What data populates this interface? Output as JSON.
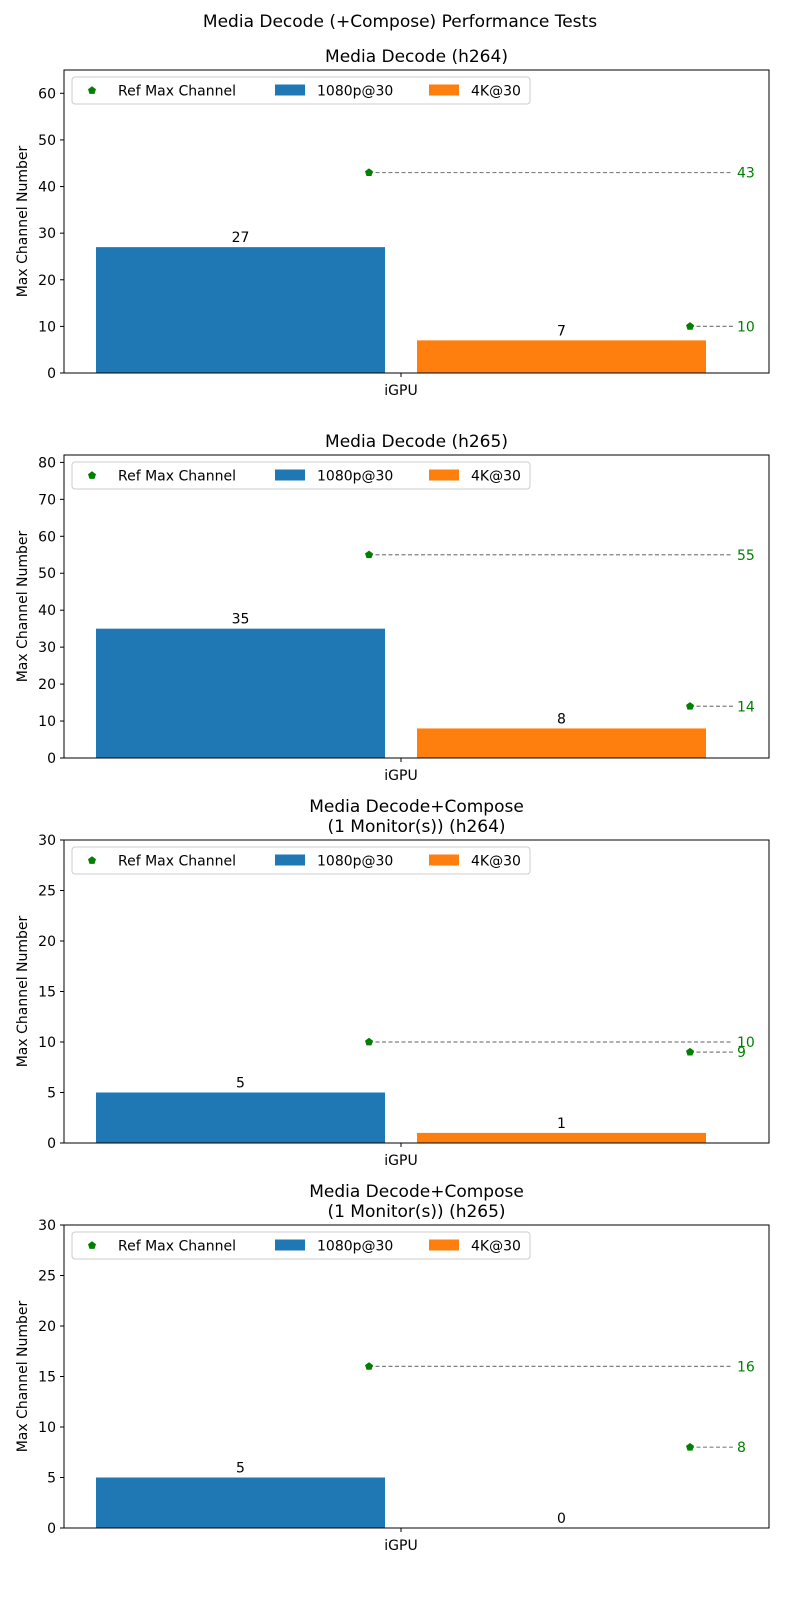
{
  "figure": {
    "suptitle": "Media Decode (+Compose) Performance Tests"
  },
  "colors": {
    "series_1080": "#1f77b4",
    "series_4k": "#ff7f0e",
    "ref_marker": "#008000",
    "ref_line": "#808080",
    "ref_label": "#008000"
  },
  "chart_data": [
    {
      "type": "bar",
      "title": "Media Decode (h264)",
      "ylabel": "Max Channel Number",
      "categories": [
        "iGPU"
      ],
      "ylim": [
        0,
        65
      ],
      "yticks": [
        0,
        10,
        20,
        30,
        40,
        50,
        60
      ],
      "legend": {
        "placement": "top-left",
        "entries": [
          "Ref Max Channel",
          "1080p@30",
          "4K@30"
        ]
      },
      "series": [
        {
          "name": "1080p@30",
          "values": [
            27
          ],
          "ref": 43
        },
        {
          "name": "4K@30",
          "values": [
            7
          ],
          "ref": 10
        }
      ]
    },
    {
      "type": "bar",
      "title": "Media Decode (h265)",
      "ylabel": "Max Channel Number",
      "categories": [
        "iGPU"
      ],
      "ylim": [
        0,
        82
      ],
      "yticks": [
        0,
        10,
        20,
        30,
        40,
        50,
        60,
        70,
        80
      ],
      "legend": {
        "placement": "top-left",
        "entries": [
          "Ref Max Channel",
          "1080p@30",
          "4K@30"
        ]
      },
      "series": [
        {
          "name": "1080p@30",
          "values": [
            35
          ],
          "ref": 55
        },
        {
          "name": "4K@30",
          "values": [
            8
          ],
          "ref": 14
        }
      ]
    },
    {
      "type": "bar",
      "title": "Media Decode+Compose\n(1 Monitor(s)) (h264)",
      "ylabel": "Max Channel Number",
      "categories": [
        "iGPU"
      ],
      "ylim": [
        0,
        30
      ],
      "yticks": [
        0,
        5,
        10,
        15,
        20,
        25,
        30
      ],
      "legend": {
        "placement": "top-left",
        "entries": [
          "Ref Max Channel",
          "1080p@30",
          "4K@30"
        ]
      },
      "series": [
        {
          "name": "1080p@30",
          "values": [
            5
          ],
          "ref": 10
        },
        {
          "name": "4K@30",
          "values": [
            1
          ],
          "ref": 9
        }
      ]
    },
    {
      "type": "bar",
      "title": "Media Decode+Compose\n(1 Monitor(s)) (h265)",
      "ylabel": "Max Channel Number",
      "categories": [
        "iGPU"
      ],
      "ylim": [
        0,
        30
      ],
      "yticks": [
        0,
        5,
        10,
        15,
        20,
        25,
        30
      ],
      "legend": {
        "placement": "top-left",
        "entries": [
          "Ref Max Channel",
          "1080p@30",
          "4K@30"
        ]
      },
      "series": [
        {
          "name": "1080p@30",
          "values": [
            5
          ],
          "ref": 16
        },
        {
          "name": "4K@30",
          "values": [
            0
          ],
          "ref": 8
        }
      ]
    }
  ]
}
